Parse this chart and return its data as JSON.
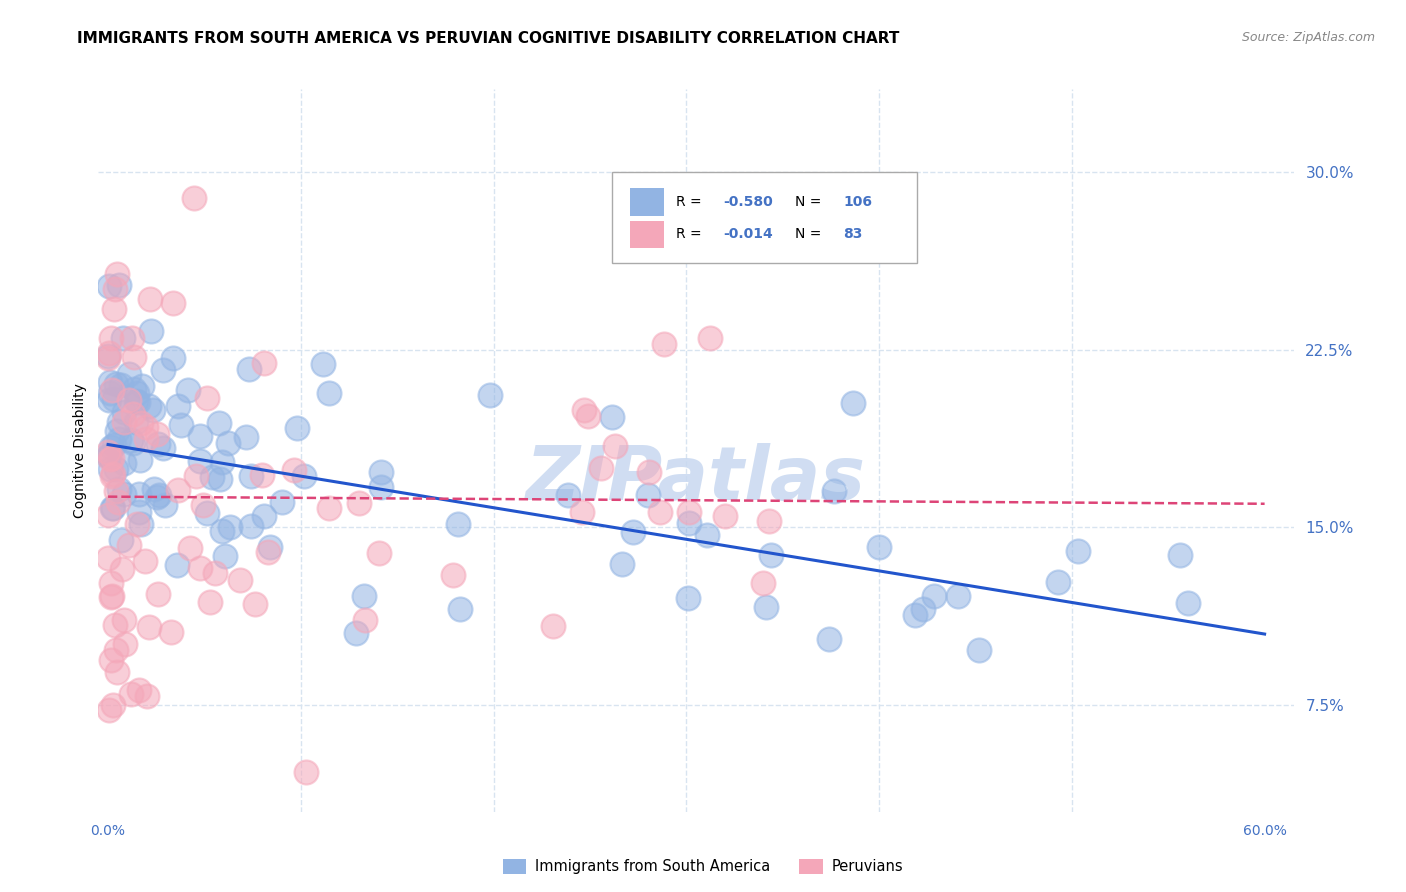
{
  "title": "IMMIGRANTS FROM SOUTH AMERICA VS PERUVIAN COGNITIVE DISABILITY CORRELATION CHART",
  "source": "Source: ZipAtlas.com",
  "ylabel": "Cognitive Disability",
  "yticks": [
    "7.5%",
    "15.0%",
    "22.5%",
    "30.0%"
  ],
  "ytick_vals": [
    0.075,
    0.15,
    0.225,
    0.3
  ],
  "xlim": [
    -0.005,
    0.615
  ],
  "ylim": [
    0.03,
    0.335
  ],
  "blue_R": "-0.580",
  "blue_N": "106",
  "pink_R": "-0.014",
  "pink_N": "83",
  "blue_color": "#92b4e3",
  "pink_color": "#f4a7b9",
  "blue_line_color": "#2255cc",
  "pink_line_color": "#dd4477",
  "watermark": "ZIPatlas",
  "watermark_color": "#c8d8f0",
  "title_fontsize": 11,
  "source_fontsize": 9,
  "legend_label_blue": "Immigrants from South America",
  "legend_label_pink": "Peruvians",
  "blue_line_start_x": 0.0,
  "blue_line_start_y": 0.185,
  "blue_line_end_x": 0.6,
  "blue_line_end_y": 0.105,
  "pink_line_start_x": 0.0,
  "pink_line_start_y": 0.163,
  "pink_line_end_x": 0.6,
  "pink_line_end_y": 0.16,
  "background_color": "#ffffff",
  "grid_color": "#d8e4f0",
  "axis_color": "#4472c4"
}
